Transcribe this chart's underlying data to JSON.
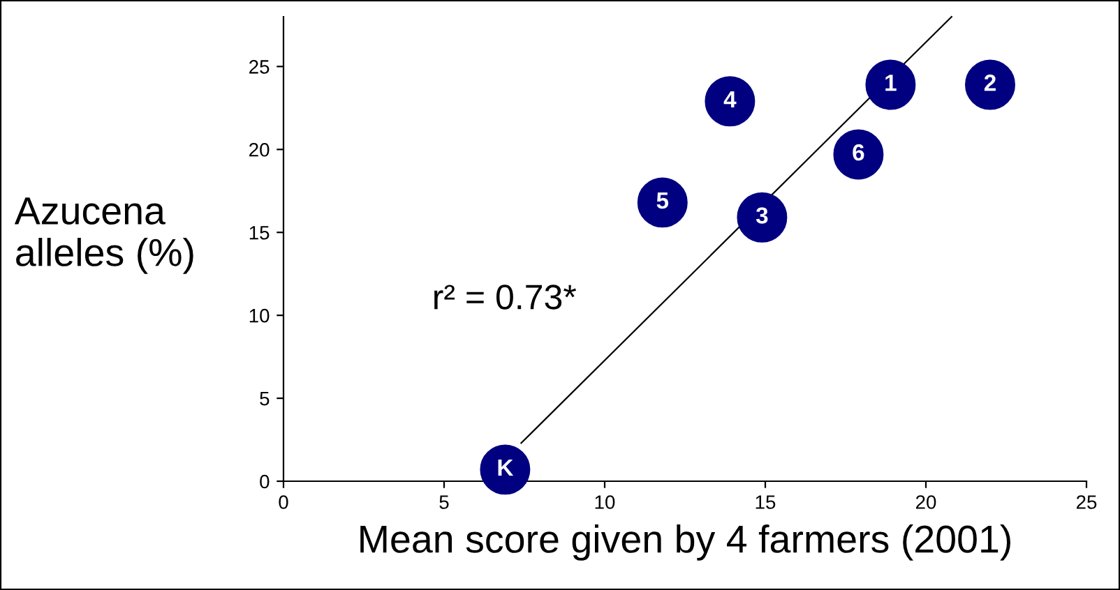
{
  "chart_data": {
    "type": "scatter",
    "xlabel": "Mean score given by 4 farmers (2001)",
    "ylabel": "Azucena\nalleles (%)",
    "series": [
      {
        "color": "#000080",
        "x": [
          18.9,
          22.0,
          14.9,
          13.9,
          11.8,
          17.9,
          6.9
        ],
        "values": [
          23.9,
          23.9,
          15.9,
          22.9,
          16.8,
          19.7,
          0.7
        ],
        "marker": "circle"
      },
      {
        "type": "line",
        "color": "#000000",
        "x": [
          7.4,
          20.8
        ],
        "values": [
          2.3,
          28
        ],
        "marker": "none"
      }
    ],
    "annotations": [
      {
        "text": "1",
        "x": 18.9,
        "y": 23.9
      },
      {
        "text": "2",
        "x": 22.0,
        "y": 23.9
      },
      {
        "text": "3",
        "x": 14.9,
        "y": 15.9
      },
      {
        "text": "4",
        "x": 13.9,
        "y": 22.9
      },
      {
        "text": "5",
        "x": 11.8,
        "y": 16.8
      },
      {
        "text": "6",
        "x": 17.9,
        "y": 19.7
      },
      {
        "text": "K",
        "x": 6.9,
        "y": 0.7
      },
      "r² = 0.73*"
    ],
    "xlim": [
      0,
      25
    ],
    "xticks": [
      0,
      5,
      10,
      15,
      20,
      25
    ],
    "ylim": [
      0,
      28
    ],
    "yticks": [
      0,
      5,
      10,
      15,
      20,
      25
    ],
    "grid": false,
    "legend": false
  }
}
